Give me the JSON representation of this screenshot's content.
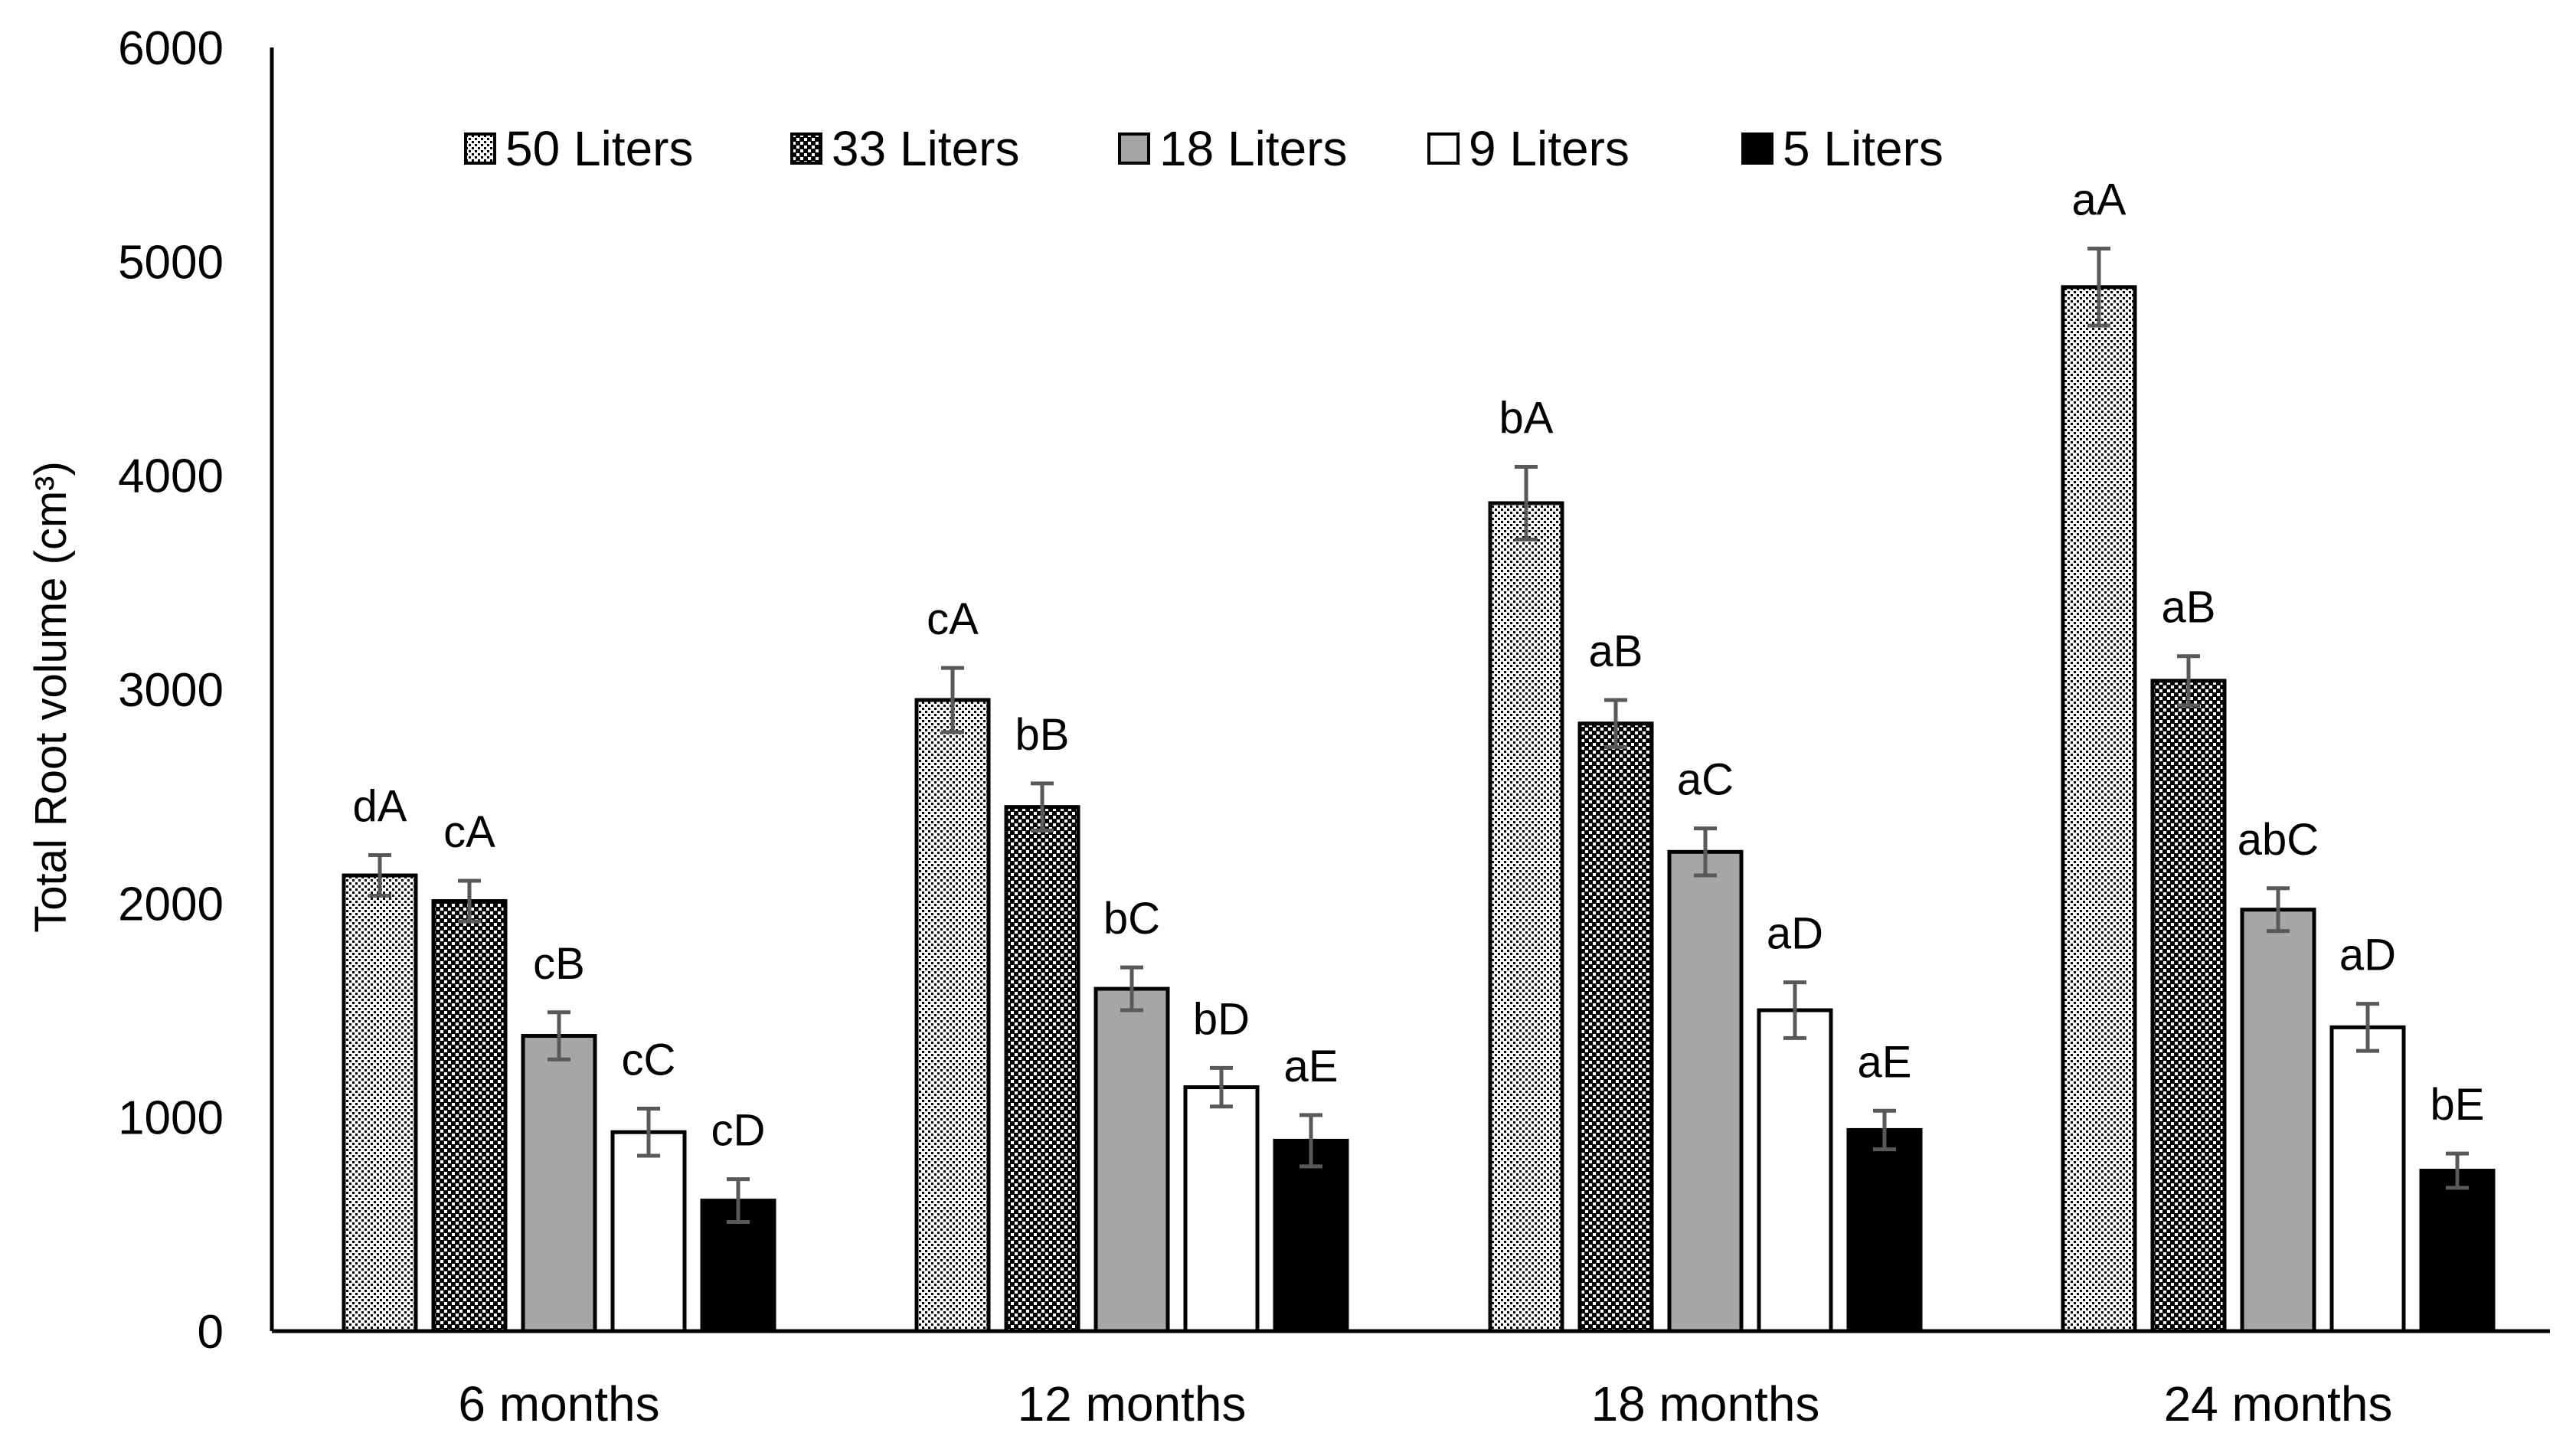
{
  "chart_data": {
    "type": "bar",
    "title": "",
    "xlabel": "",
    "ylabel": "Total Root volume (cm³)",
    "ylim": [
      0,
      6000
    ],
    "yticks": [
      0,
      1000,
      2000,
      3000,
      4000,
      5000,
      6000
    ],
    "grid": false,
    "legend_position": "top",
    "categories": [
      "6 months",
      "12 months",
      "18 months",
      "24 months"
    ],
    "series": [
      {
        "name": "50 Liters",
        "pattern": "dots",
        "values": [
          2130,
          2950,
          3870,
          4880
        ],
        "errors": [
          95,
          150,
          170,
          180
        ],
        "labels": [
          "dA",
          "cA",
          "bA",
          "aA"
        ]
      },
      {
        "name": "33 Liters",
        "pattern": "checker",
        "values": [
          2010,
          2450,
          2840,
          3040
        ],
        "errors": [
          95,
          110,
          110,
          115
        ],
        "labels": [
          "cA",
          "bB",
          "aB",
          "aB"
        ]
      },
      {
        "name": "18 Liters",
        "pattern": "gray",
        "values": [
          1380,
          1600,
          2240,
          1970
        ],
        "errors": [
          110,
          100,
          110,
          100
        ],
        "labels": [
          "cB",
          "bC",
          "aC",
          "abC"
        ]
      },
      {
        "name": "9 Liters",
        "pattern": "white",
        "values": [
          930,
          1140,
          1500,
          1420
        ],
        "errors": [
          110,
          90,
          130,
          110
        ],
        "labels": [
          "cC",
          "bD",
          "aD",
          "aD"
        ]
      },
      {
        "name": "5 Liters",
        "pattern": "black",
        "values": [
          610,
          890,
          940,
          750
        ],
        "errors": [
          100,
          120,
          90,
          80
        ],
        "labels": [
          "cD",
          "aE",
          "aE",
          "bE"
        ]
      }
    ]
  },
  "colors": {
    "axis": "#000000",
    "error_bar": "#595959",
    "gray_fill": "#a6a6a6",
    "black_fill": "#000000",
    "white_fill": "#ffffff"
  }
}
